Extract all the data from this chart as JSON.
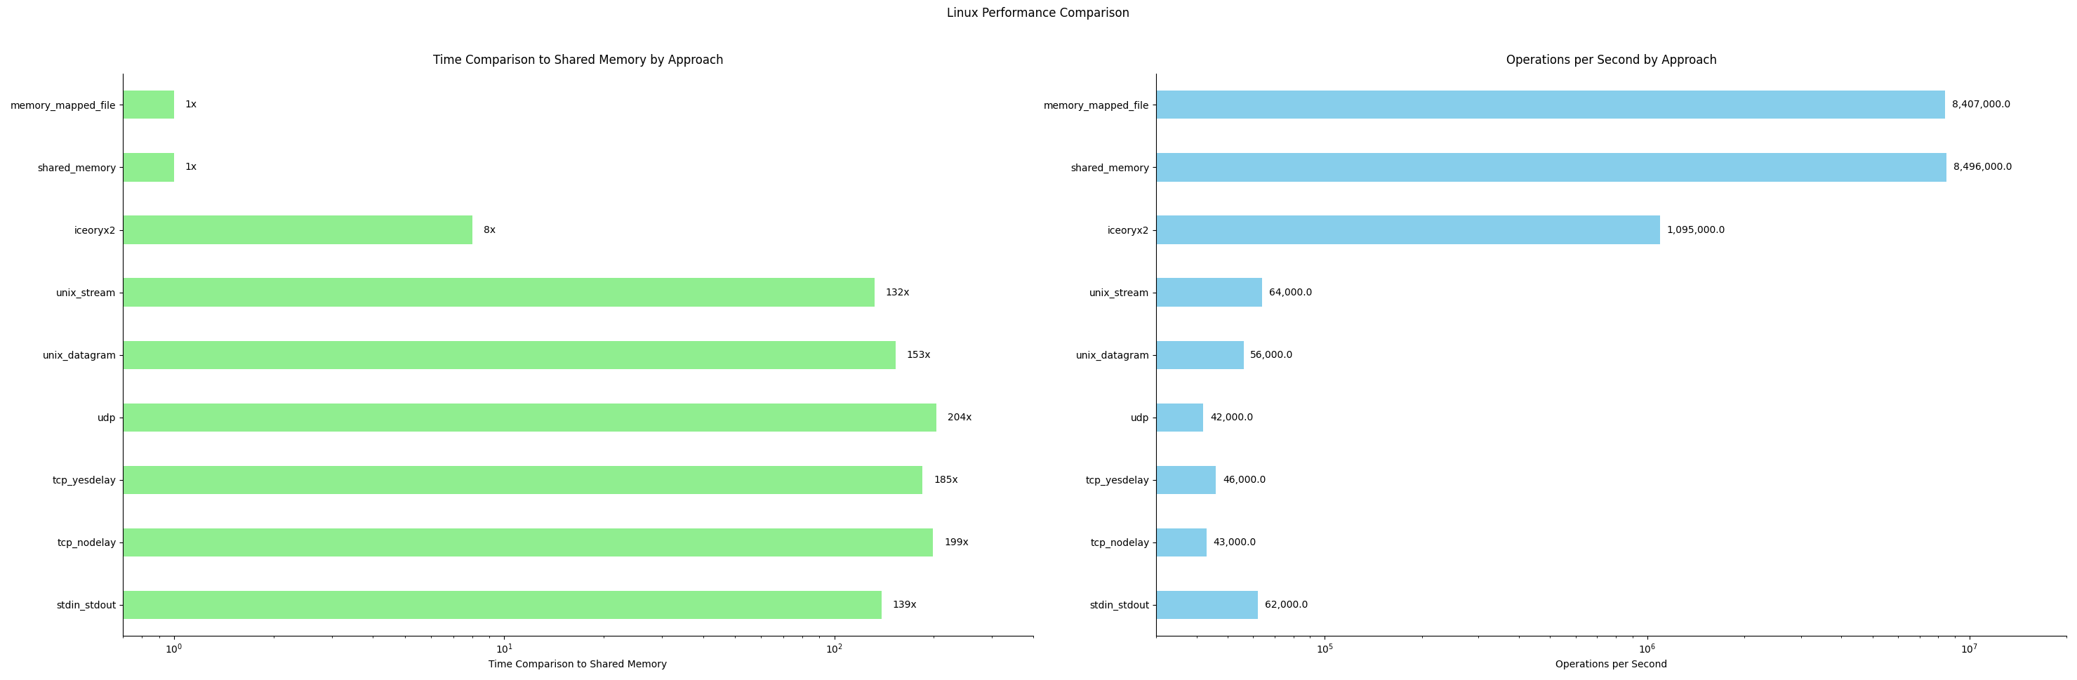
{
  "suptitle": "Linux Performance Comparison",
  "left_chart": {
    "title": "Time Comparison to Shared Memory by Approach",
    "xlabel": "Time Comparison to Shared Memory",
    "categories": [
      "memory_mapped_file",
      "shared_memory",
      "iceoryx2",
      "unix_stream",
      "unix_datagram",
      "udp",
      "tcp_yesdelay",
      "tcp_nodelay",
      "stdin_stdout"
    ],
    "values": [
      1,
      1,
      8,
      132,
      153,
      204,
      185,
      199,
      139
    ],
    "labels": [
      "1x",
      "1x",
      "8x",
      "132x",
      "153x",
      "204x",
      "185x",
      "199x",
      "139x"
    ],
    "bar_color": "#90EE90",
    "xlim_min": 0.7,
    "xlim_max": 400,
    "xticks": [
      1,
      10,
      100
    ]
  },
  "right_chart": {
    "title": "Operations per Second by Approach",
    "xlabel": "Operations per Second",
    "categories": [
      "memory_mapped_file",
      "shared_memory",
      "iceoryx2",
      "unix_stream",
      "unix_datagram",
      "udp",
      "tcp_yesdelay",
      "tcp_nodelay",
      "stdin_stdout"
    ],
    "values": [
      8407000,
      8496000,
      1095000,
      64000,
      56000,
      42000,
      46000,
      43000,
      62000
    ],
    "labels": [
      "8,407,000.0",
      "8,496,000.0",
      "1,095,000.0",
      "64,000.0",
      "56,000.0",
      "42,000.0",
      "46,000.0",
      "43,000.0",
      "62,000.0"
    ],
    "bar_color": "#87CEEB",
    "xlim_min": 30000,
    "xlim_max": 20000000,
    "xticks": [
      100000,
      1000000,
      10000000
    ]
  },
  "background_color": "#ffffff",
  "suptitle_fontsize": 12,
  "title_fontsize": 12,
  "label_fontsize": 10,
  "tick_fontsize": 10,
  "bar_height": 0.45
}
